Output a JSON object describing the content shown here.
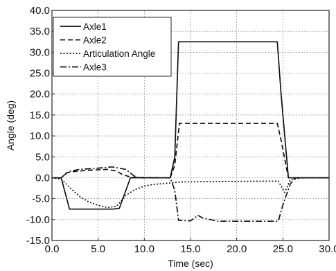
{
  "chart_data": {
    "type": "line",
    "title": "",
    "xlabel": "Time (sec)",
    "ylabel": "Angle (deg)",
    "xlim": [
      0,
      30
    ],
    "ylim": [
      -15,
      40
    ],
    "xticks": [
      0,
      5,
      10,
      15,
      20,
      25,
      30
    ],
    "xtick_labels": [
      "0.0",
      "5.0",
      "10.0",
      "15.0",
      "20.0",
      "25.0",
      "30.0"
    ],
    "yticks": [
      -15,
      -10,
      -5,
      0,
      5,
      10,
      15,
      20,
      25,
      30,
      35,
      40
    ],
    "ytick_labels": [
      "-15.0",
      "-10.0",
      "-5.0",
      "0.0",
      "5.0",
      "10.0",
      "15.0",
      "20.0",
      "25.0",
      "30.0",
      "35.0",
      "40.0"
    ],
    "grid": true,
    "legend_position": "top-left",
    "series": [
      {
        "name": "Axle1",
        "style": "solid",
        "color": "#111111",
        "x": [
          0,
          1.0,
          1.9,
          2.3,
          6.6,
          7.3,
          8.5,
          12.8,
          13.3,
          13.7,
          24.4,
          24.8,
          25.6,
          26.0,
          30
        ],
        "y": [
          0,
          0,
          -7.5,
          -7.5,
          -7.5,
          -7.3,
          0,
          0,
          5,
          32.5,
          32.5,
          20,
          0,
          0,
          0
        ]
      },
      {
        "name": "Axle2",
        "style": "dashed",
        "color": "#111111",
        "x": [
          0,
          1.0,
          1.6,
          2.5,
          4.0,
          6.0,
          7.0,
          7.6,
          8.6,
          12.8,
          13.3,
          13.8,
          24.4,
          24.8,
          25.6,
          26.0,
          30
        ],
        "y": [
          0,
          0,
          1.2,
          1.5,
          1.8,
          2.0,
          1.6,
          0.8,
          0.1,
          0,
          3,
          13,
          13,
          9,
          0,
          0,
          0
        ]
      },
      {
        "name": "Articulation Angle",
        "style": "dotted",
        "color": "#111111",
        "x": [
          0,
          1.0,
          2.0,
          3.0,
          4.0,
          5.0,
          6.0,
          7.0,
          8.0,
          9.0,
          10.0,
          11.0,
          12.0,
          13.0,
          14.0,
          18.0,
          24.5,
          25.2,
          25.8,
          27.0,
          30
        ],
        "y": [
          0,
          -0.3,
          -2.5,
          -4.5,
          -5.8,
          -6.6,
          -7.1,
          -6.8,
          -4.2,
          -2.8,
          -2.0,
          -1.6,
          -1.4,
          -1.2,
          -1.0,
          -0.9,
          -0.8,
          -3.5,
          -0.5,
          0,
          0
        ]
      },
      {
        "name": "Axle3",
        "style": "dash-dot",
        "color": "#111111",
        "x": [
          0,
          1.0,
          1.8,
          3.0,
          5.0,
          6.5,
          8.0,
          8.9,
          9.5,
          12.8,
          13.3,
          13.7,
          15.0,
          15.8,
          16.3,
          18.0,
          24.5,
          25.0,
          25.8,
          26.3,
          30
        ],
        "y": [
          0,
          0,
          1.5,
          2.0,
          2.3,
          2.6,
          2.0,
          0.4,
          0,
          0,
          -3,
          -10.2,
          -10.3,
          -9.0,
          -9.6,
          -10.4,
          -10.4,
          -6.5,
          -1.5,
          0,
          0
        ]
      }
    ]
  }
}
